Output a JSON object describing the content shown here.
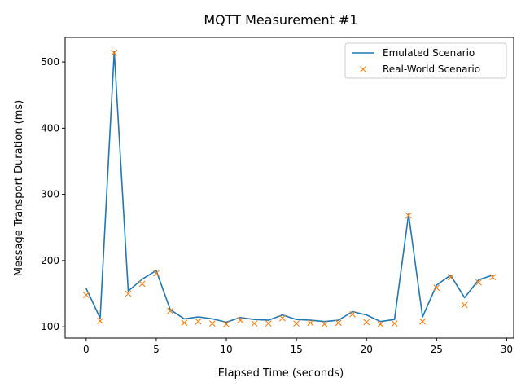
{
  "chart_data": {
    "type": "line",
    "title": "MQTT Measurement #1",
    "xlabel": "Elapsed Time (seconds)",
    "ylabel": "Message Transport Duration (ms)",
    "xlim": [
      -1.5,
      30.5
    ],
    "ylim": [
      83,
      537
    ],
    "xticks": [
      0,
      5,
      10,
      15,
      20,
      25,
      30
    ],
    "yticks": [
      100,
      200,
      300,
      400,
      500
    ],
    "legend": "top-right",
    "grid": false,
    "x": [
      0,
      1,
      2,
      3,
      4,
      5,
      6,
      7,
      8,
      9,
      10,
      11,
      12,
      13,
      14,
      15,
      16,
      17,
      18,
      19,
      20,
      21,
      22,
      23,
      24,
      25,
      26,
      27,
      28,
      29
    ],
    "series": [
      {
        "name": "Emulated Scenario",
        "style": "line",
        "color": "#1f77b4",
        "values": [
          158,
          113,
          516,
          154,
          172,
          185,
          126,
          112,
          115,
          112,
          107,
          114,
          111,
          110,
          118,
          111,
          110,
          108,
          110,
          123,
          118,
          108,
          111,
          270,
          115,
          163,
          178,
          144,
          171,
          178
        ]
      },
      {
        "name": "Real-World Scenario",
        "style": "marker-x",
        "color": "#ff7f0e",
        "values": [
          148,
          109,
          514,
          150,
          165,
          181,
          124,
          106,
          108,
          105,
          104,
          110,
          105,
          105,
          113,
          105,
          106,
          104,
          106,
          119,
          107,
          104,
          105,
          268,
          108,
          159,
          175,
          133,
          167,
          175
        ]
      }
    ]
  }
}
